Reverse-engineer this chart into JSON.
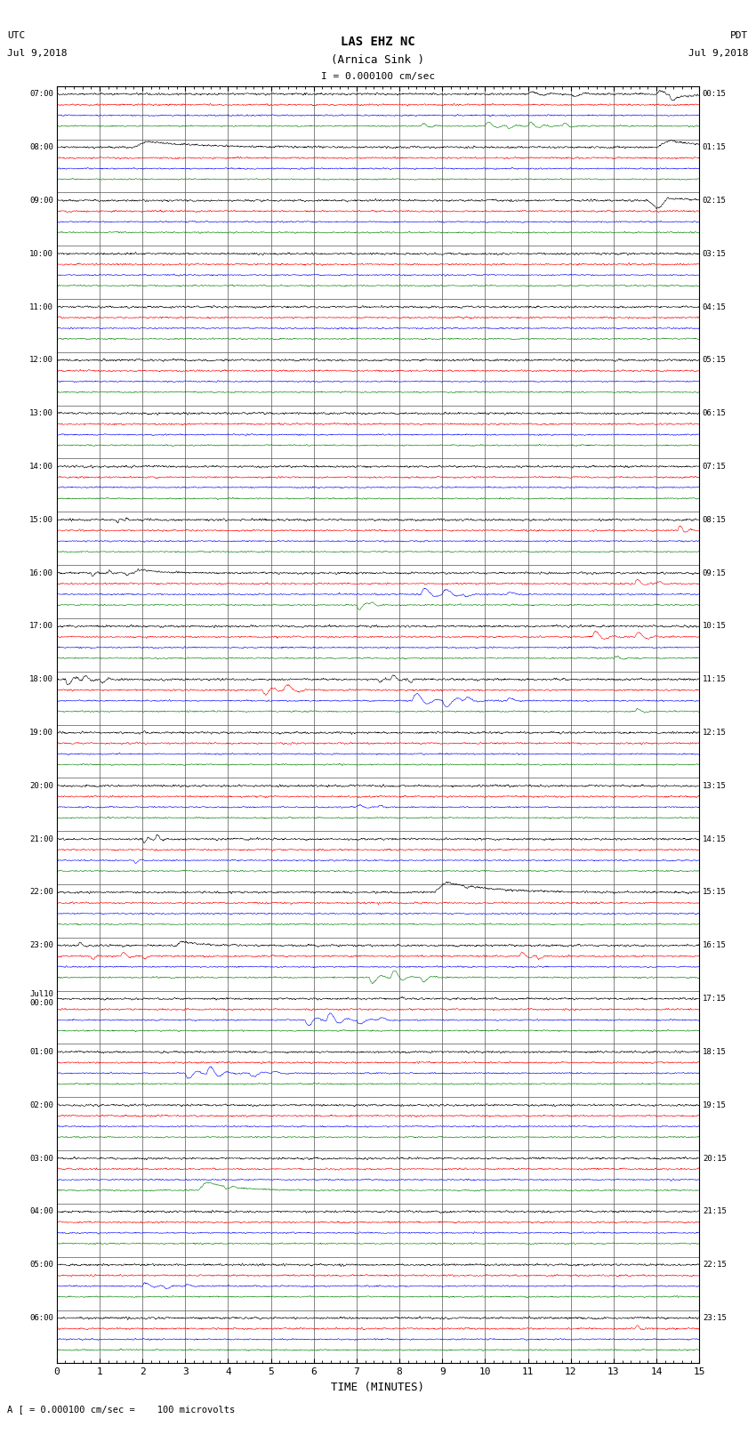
{
  "title_line1": "LAS EHZ NC",
  "title_line2": "(Arnica Sink )",
  "scale_text": "I = 0.000100 cm/sec",
  "left_label_line1": "UTC",
  "left_label_line2": "Jul 9,2018",
  "right_label_line1": "PDT",
  "right_label_line2": "Jul 9,2018",
  "bottom_label": "A [ = 0.000100 cm/sec =    100 microvolts",
  "xlabel": "TIME (MINUTES)",
  "xlim": [
    0,
    15
  ],
  "xticks": [
    0,
    1,
    2,
    3,
    4,
    5,
    6,
    7,
    8,
    9,
    10,
    11,
    12,
    13,
    14,
    15
  ],
  "n_rows": 24,
  "row_labels_left": [
    "07:00",
    "08:00",
    "09:00",
    "10:00",
    "11:00",
    "12:00",
    "13:00",
    "14:00",
    "15:00",
    "16:00",
    "17:00",
    "18:00",
    "19:00",
    "20:00",
    "21:00",
    "22:00",
    "23:00",
    "Jul10\n00:00",
    "01:00",
    "02:00",
    "03:00",
    "04:00",
    "05:00",
    "06:00"
  ],
  "row_labels_right": [
    "00:15",
    "01:15",
    "02:15",
    "03:15",
    "04:15",
    "05:15",
    "06:15",
    "07:15",
    "08:15",
    "09:15",
    "10:15",
    "11:15",
    "12:15",
    "13:15",
    "14:15",
    "15:15",
    "16:15",
    "17:15",
    "18:15",
    "19:15",
    "20:15",
    "21:15",
    "22:15",
    "23:15"
  ],
  "bg_color": "#ffffff",
  "plot_bg_color": "#ffffff",
  "grid_color": "#555555",
  "trace_colors": [
    "black",
    "red",
    "blue",
    "green"
  ],
  "seed": 42
}
